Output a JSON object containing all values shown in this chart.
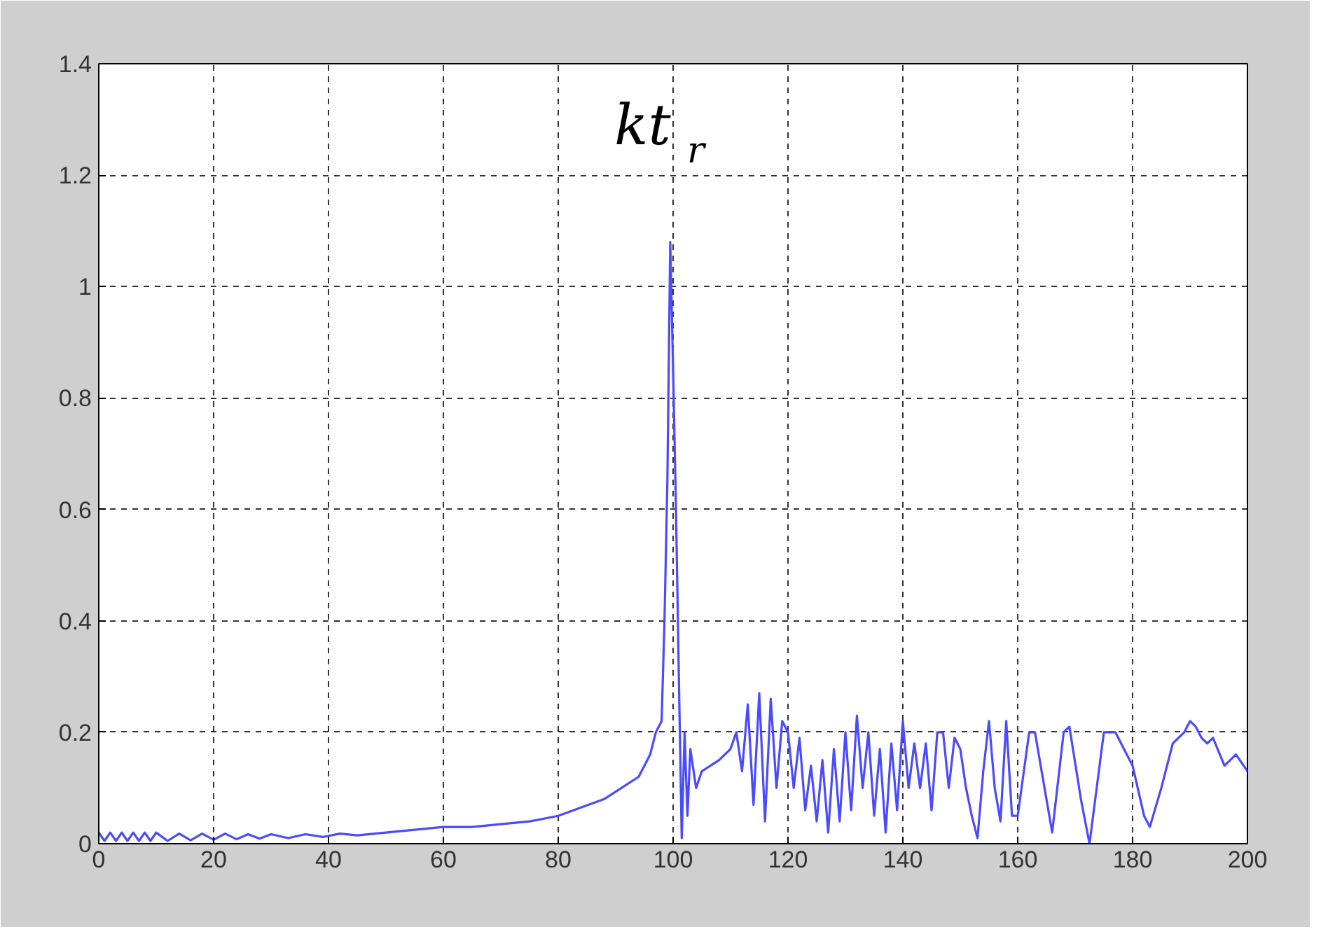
{
  "chart_data": {
    "type": "line",
    "x": [
      0,
      1,
      2,
      3,
      4,
      5,
      6,
      7,
      8,
      9,
      10,
      12,
      14,
      16,
      18,
      20,
      22,
      24,
      26,
      28,
      30,
      33,
      36,
      39,
      42,
      45,
      50,
      55,
      60,
      65,
      70,
      75,
      80,
      84,
      88,
      91,
      94,
      96,
      97,
      98,
      98.5,
      99,
      99.5,
      100,
      100.5,
      101,
      101.5,
      102,
      102.5,
      103,
      104,
      105,
      108,
      110,
      111,
      112,
      113,
      114,
      115,
      116,
      117,
      118,
      119,
      120,
      121,
      122,
      123,
      124,
      125,
      126,
      127,
      128,
      129,
      130,
      131,
      132,
      133,
      134,
      135,
      136,
      137,
      138,
      139,
      140,
      141,
      142,
      143,
      144,
      145,
      146,
      147,
      148,
      149,
      150,
      151,
      152,
      153,
      154,
      155,
      156,
      157,
      158,
      159,
      160,
      162,
      163,
      165,
      166,
      168,
      169,
      171,
      172.5,
      175,
      177,
      179,
      180,
      182,
      183,
      185,
      187,
      189,
      190,
      191,
      192,
      193,
      194,
      196,
      198,
      200
    ],
    "series": [
      {
        "color": "#4a4aff",
        "values": [
          0.02,
          0.005,
          0.02,
          0.005,
          0.02,
          0.005,
          0.02,
          0.005,
          0.02,
          0.005,
          0.02,
          0.005,
          0.018,
          0.006,
          0.018,
          0.007,
          0.018,
          0.008,
          0.017,
          0.009,
          0.017,
          0.01,
          0.017,
          0.012,
          0.018,
          0.015,
          0.02,
          0.025,
          0.03,
          0.03,
          0.035,
          0.04,
          0.05,
          0.065,
          0.08,
          0.1,
          0.12,
          0.16,
          0.2,
          0.22,
          0.4,
          0.65,
          1.08,
          0.85,
          0.6,
          0.3,
          0.01,
          0.2,
          0.05,
          0.17,
          0.1,
          0.13,
          0.15,
          0.17,
          0.2,
          0.13,
          0.25,
          0.07,
          0.27,
          0.04,
          0.26,
          0.1,
          0.22,
          0.2,
          0.1,
          0.19,
          0.06,
          0.14,
          0.04,
          0.15,
          0.02,
          0.17,
          0.04,
          0.2,
          0.06,
          0.23,
          0.1,
          0.2,
          0.05,
          0.17,
          0.02,
          0.18,
          0.06,
          0.22,
          0.1,
          0.18,
          0.1,
          0.18,
          0.06,
          0.2,
          0.2,
          0.1,
          0.19,
          0.17,
          0.1,
          0.05,
          0.01,
          0.13,
          0.22,
          0.1,
          0.04,
          0.22,
          0.05,
          0.05,
          0.2,
          0.2,
          0.08,
          0.02,
          0.2,
          0.21,
          0.08,
          0.0,
          0.2,
          0.2,
          0.16,
          0.14,
          0.05,
          0.03,
          0.1,
          0.18,
          0.2,
          0.22,
          0.21,
          0.19,
          0.18,
          0.19,
          0.14,
          0.16,
          0.13
        ]
      }
    ],
    "xlim": [
      0,
      200
    ],
    "ylim": [
      0,
      1.4
    ],
    "xticks": [
      0,
      20,
      40,
      60,
      80,
      100,
      120,
      140,
      160,
      180,
      200
    ],
    "yticks": [
      0,
      0.2,
      0.4,
      0.6,
      0.8,
      1,
      1.2,
      1.4
    ],
    "grid": true,
    "line_style": "solid",
    "marker": "none",
    "annotations": [
      {
        "text": "kt$_{r}$",
        "x": 99.5,
        "y": 1.08
      }
    ]
  }
}
